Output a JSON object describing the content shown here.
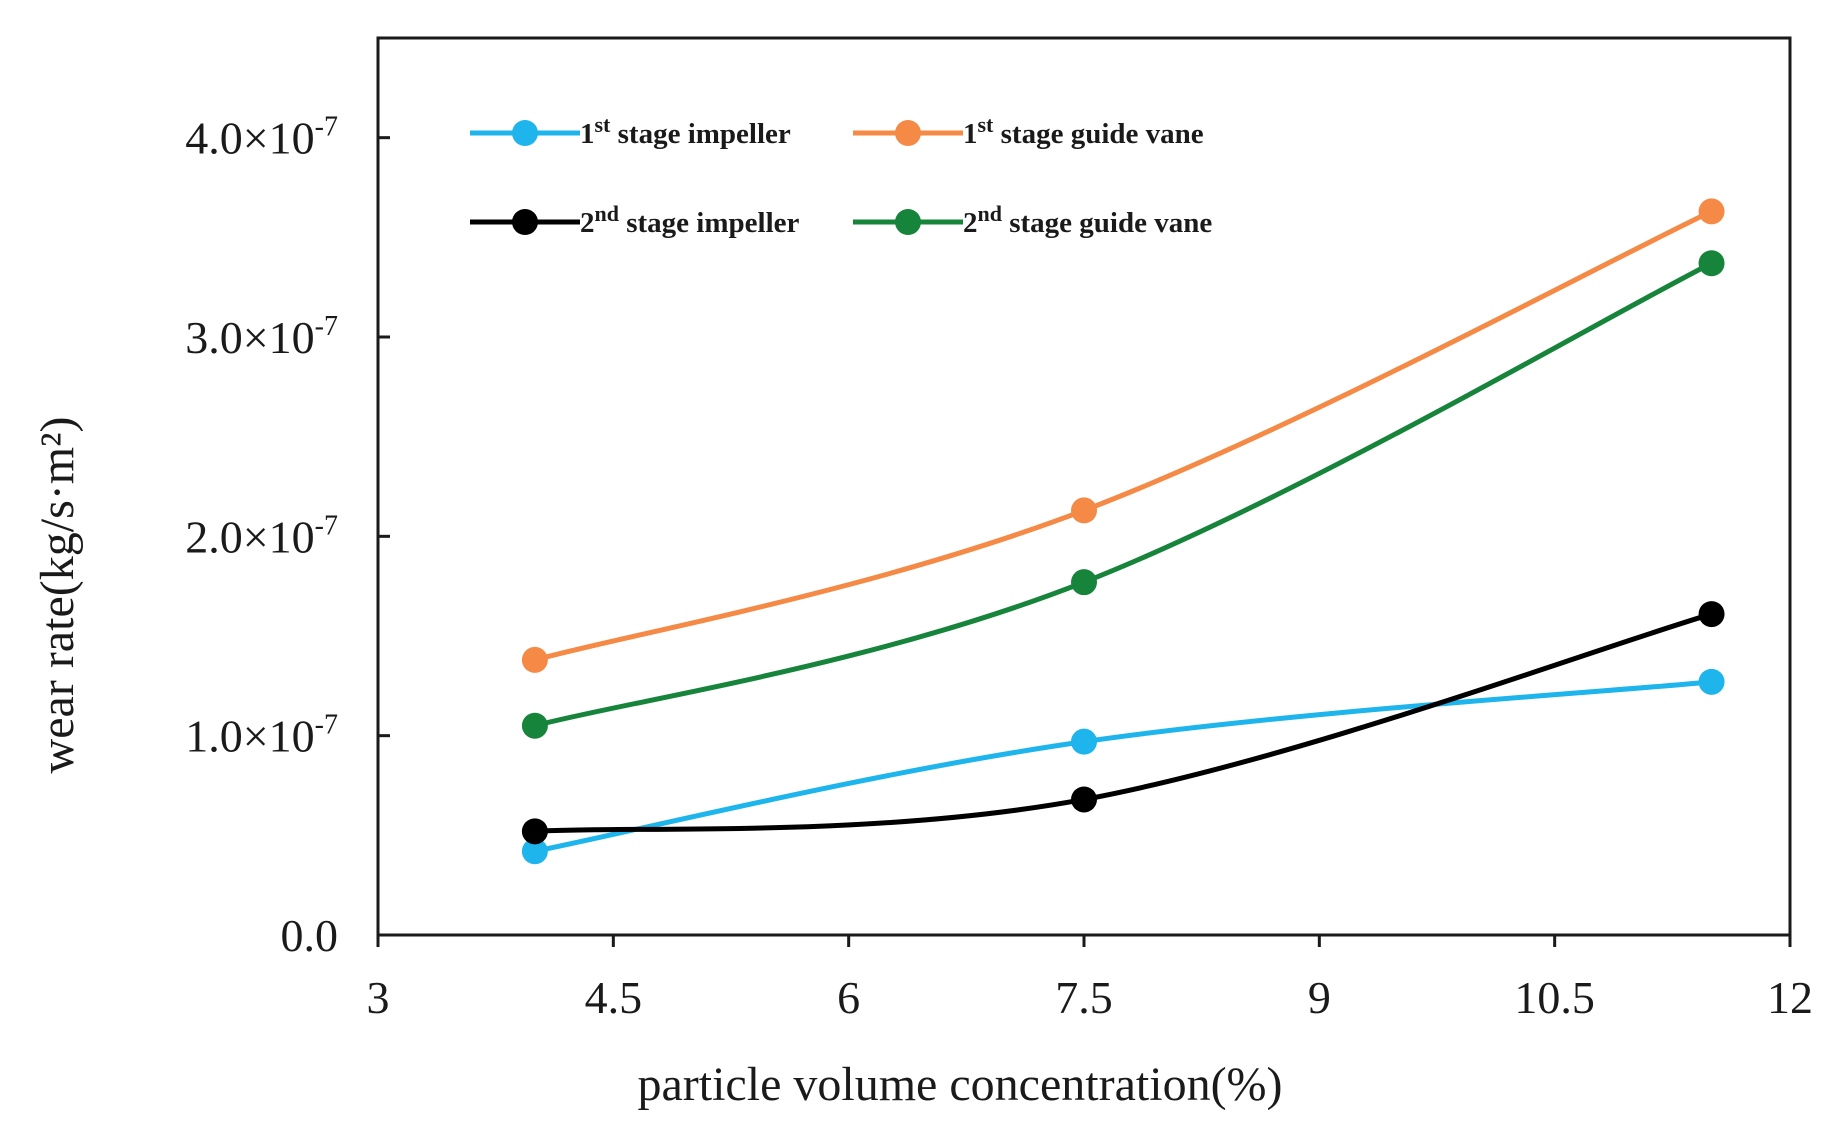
{
  "chart_data": {
    "type": "line",
    "title": "",
    "xlabel": "particle volume concentration(%)",
    "ylabel": "wear rate(kg/s·m²)",
    "xlim": [
      3,
      12
    ],
    "ylim": [
      0,
      4.5
    ],
    "y_scale_label": "×10⁻⁷",
    "x_ticks": [
      3,
      4.5,
      6,
      7.5,
      9,
      10.5,
      12
    ],
    "x_tick_labels": [
      "3",
      "4.5",
      "6",
      "7.5",
      "9",
      "10.5",
      "12"
    ],
    "y_ticks": [
      0,
      1,
      2,
      3,
      4
    ],
    "y_tick_labels": [
      {
        "mantissa": "0.0",
        "times": "",
        "base": "",
        "exp": ""
      },
      {
        "mantissa": "1.0",
        "times": "×",
        "base": "10",
        "exp": "-7"
      },
      {
        "mantissa": "2.0",
        "times": "×",
        "base": "10",
        "exp": "-7"
      },
      {
        "mantissa": "3.0",
        "times": "×",
        "base": "10",
        "exp": "-7"
      },
      {
        "mantissa": "4.0",
        "times": "×",
        "base": "10",
        "exp": "-7"
      }
    ],
    "x": [
      4,
      7.5,
      11.5
    ],
    "series": [
      {
        "name": "1st stage impeller",
        "legend_main": "1",
        "legend_sup": "st",
        "legend_rest": " stage impeller",
        "color": "#1eb4ec",
        "values": [
          0.42,
          0.97,
          1.27
        ]
      },
      {
        "name": "1st stage guide vane",
        "legend_main": "1",
        "legend_sup": "st",
        "legend_rest": " stage guide vane",
        "color": "#f48a45",
        "values": [
          1.38,
          2.13,
          3.63
        ]
      },
      {
        "name": "2nd stage impeller",
        "legend_main": "2",
        "legend_sup": "nd",
        "legend_rest": " stage impeller",
        "color": "#000000",
        "values": [
          0.52,
          0.68,
          1.61
        ]
      },
      {
        "name": "2nd stage guide vane",
        "legend_main": "2",
        "legend_sup": "nd",
        "legend_rest": " stage guide vane",
        "color": "#16843a",
        "values": [
          1.05,
          1.77,
          3.37
        ]
      }
    ],
    "legend_position": "top-left",
    "grid": false
  }
}
